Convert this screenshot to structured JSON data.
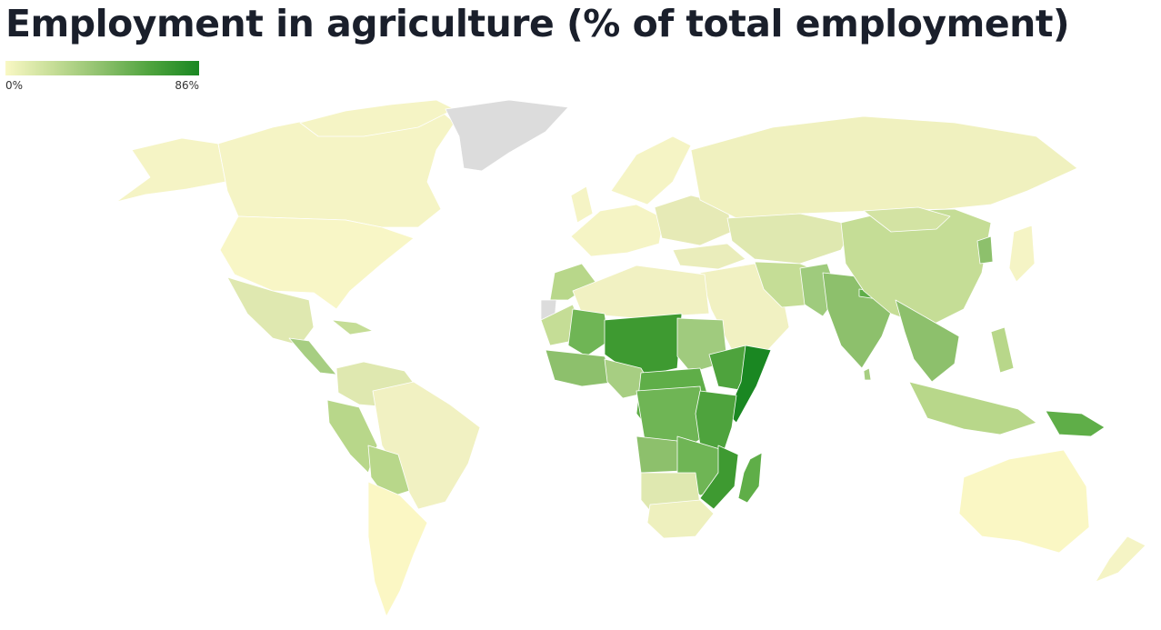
{
  "title": "Employment in agriculture (% of total employment)",
  "legend": {
    "min_label": "0%",
    "max_label": "86%",
    "min_value": 0,
    "max_value": 86,
    "color_scale": [
      "#f9f8c4",
      "#c5dd96",
      "#8dc06c",
      "#4ea33d",
      "#1a8722"
    ],
    "no_data_color": "#dcdcdc"
  }
}
